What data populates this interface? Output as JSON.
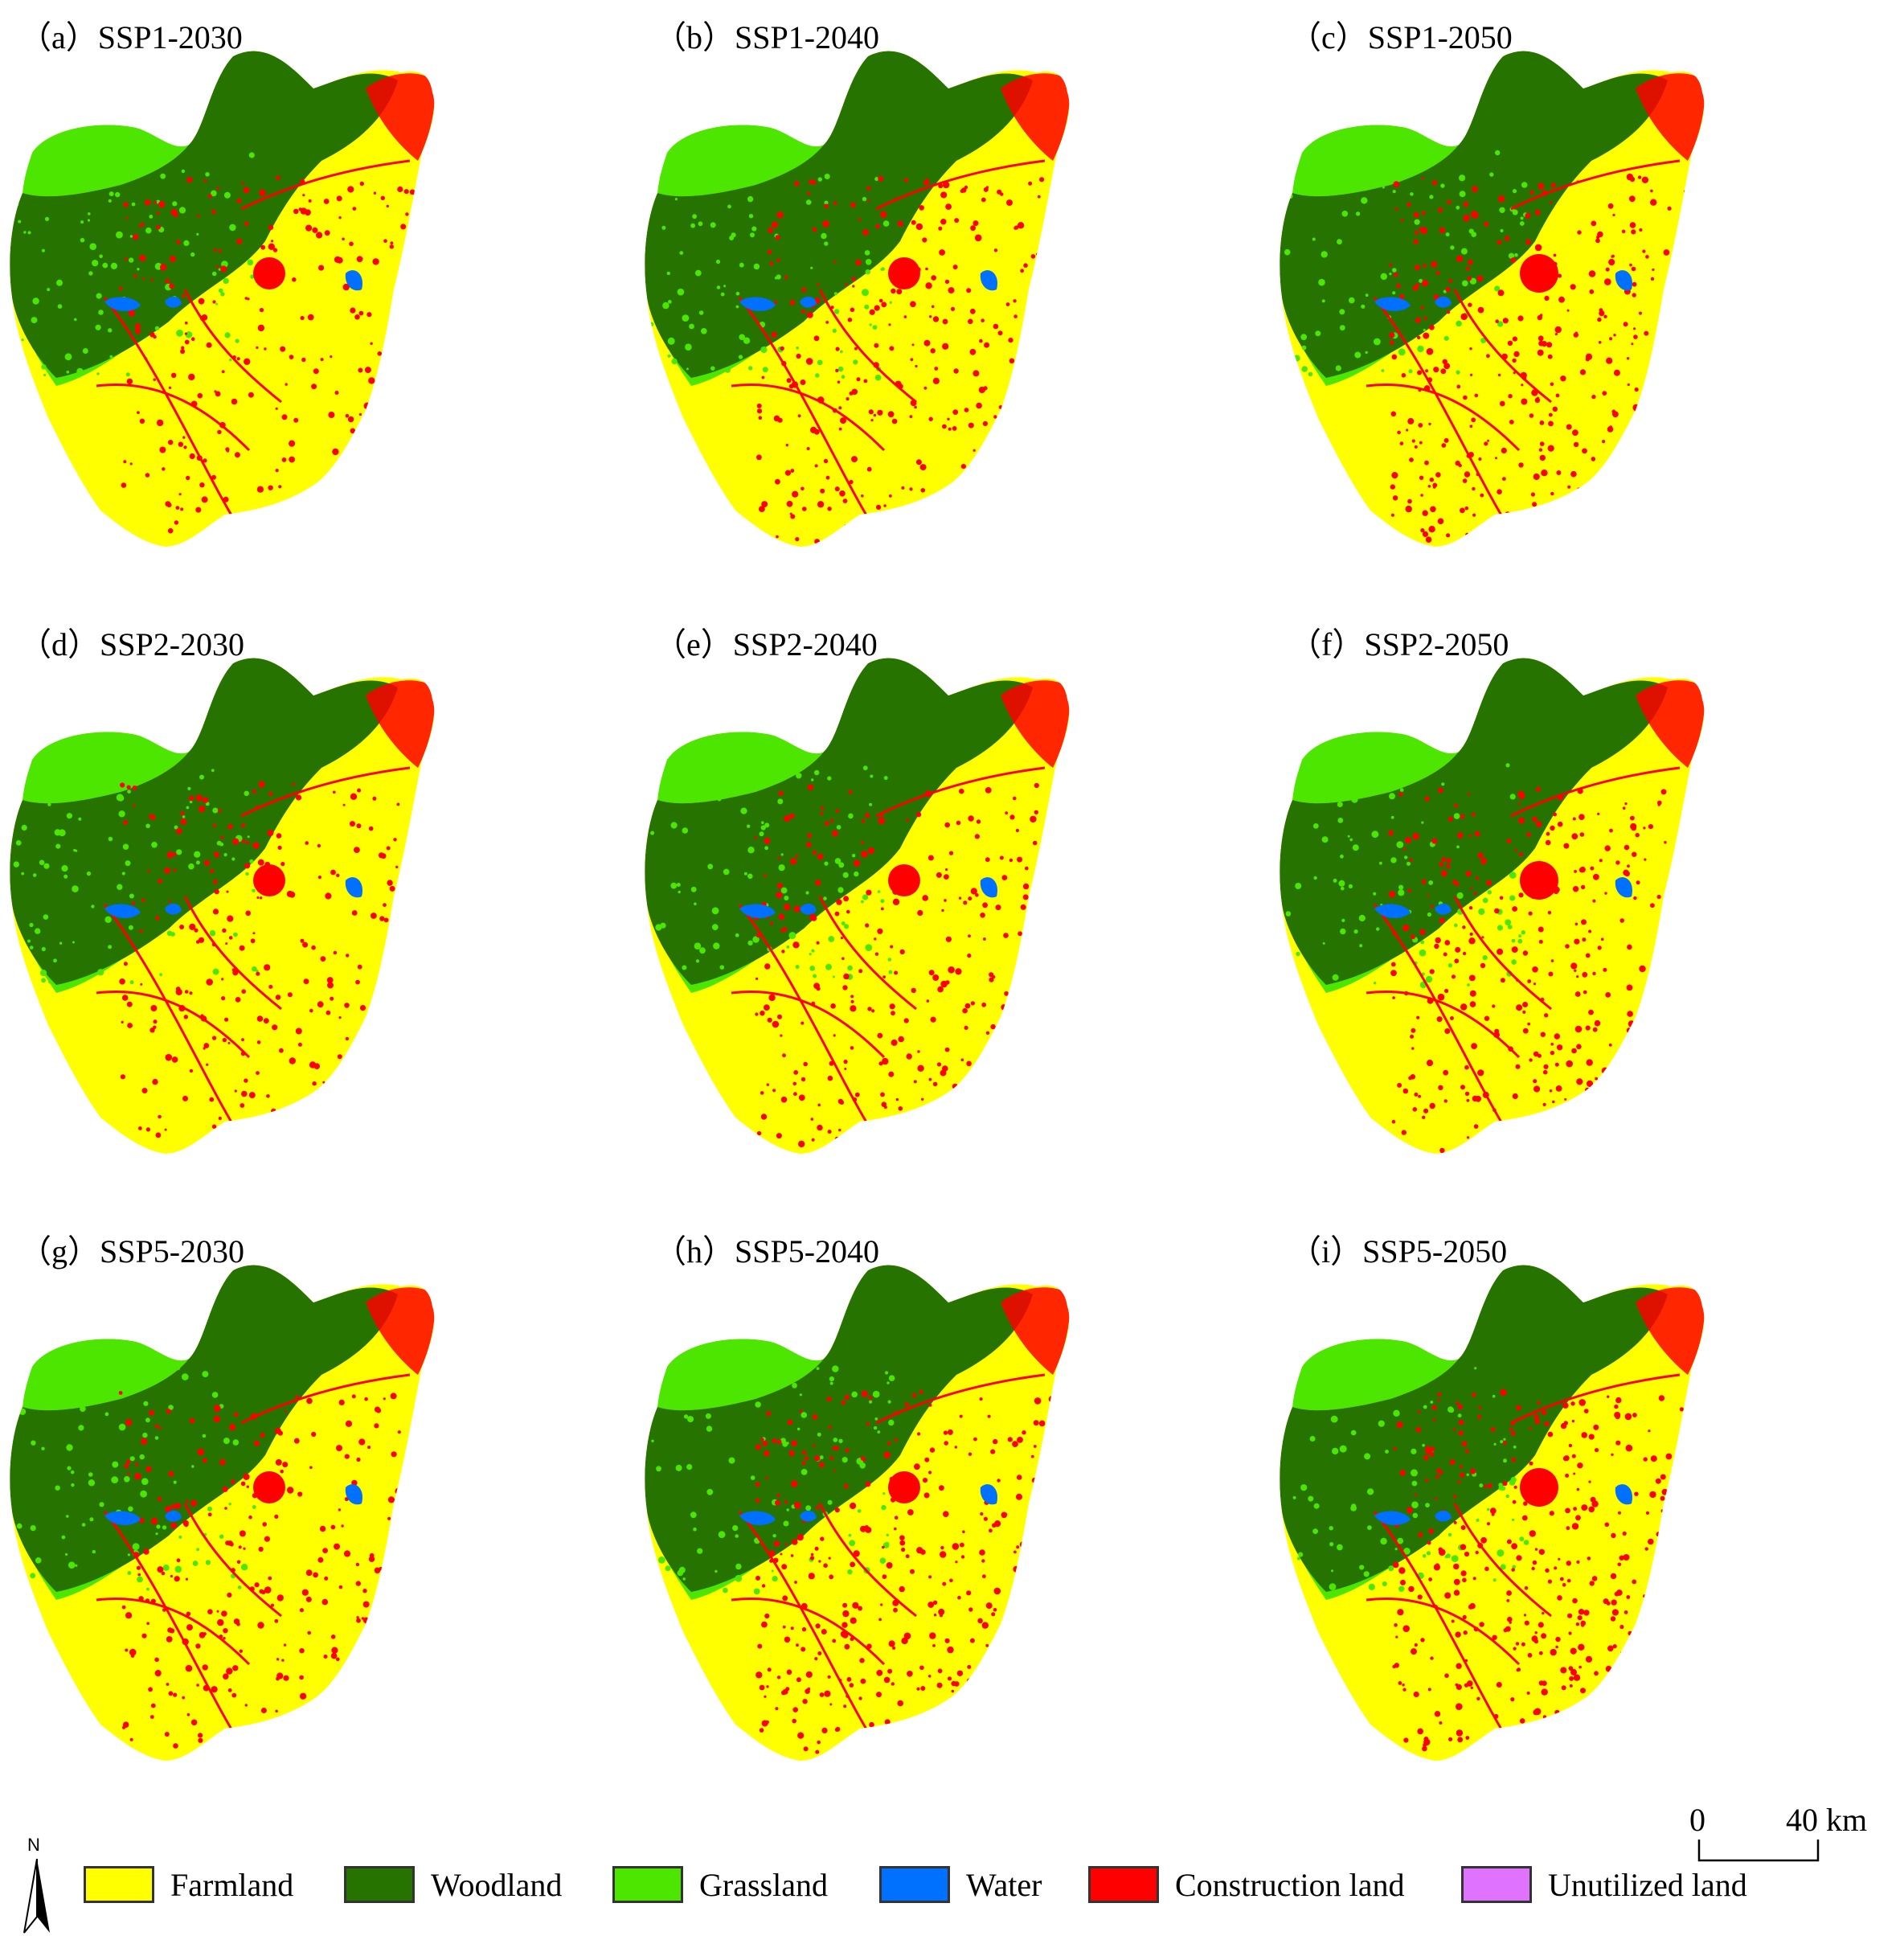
{
  "panels": [
    {
      "id": "a",
      "label": "（a）SSP1-2030",
      "scenario": "SSP1",
      "year": 2030
    },
    {
      "id": "b",
      "label": "（b）SSP1-2040",
      "scenario": "SSP1",
      "year": 2040
    },
    {
      "id": "c",
      "label": "（c）SSP1-2050",
      "scenario": "SSP1",
      "year": 2050
    },
    {
      "id": "d",
      "label": "（d）SSP2-2030",
      "scenario": "SSP2",
      "year": 2030
    },
    {
      "id": "e",
      "label": "（e）SSP2-2040",
      "scenario": "SSP2",
      "year": 2040
    },
    {
      "id": "f",
      "label": "（f）SSP2-2050",
      "scenario": "SSP2",
      "year": 2050
    },
    {
      "id": "g",
      "label": "（g）SSP5-2030",
      "scenario": "SSP5",
      "year": 2030
    },
    {
      "id": "h",
      "label": "（h）SSP5-2040",
      "scenario": "SSP5",
      "year": 2040
    },
    {
      "id": "i",
      "label": "（i）SSP5-2050",
      "scenario": "SSP5",
      "year": 2050
    }
  ],
  "legend": [
    {
      "label": "Farmland",
      "color": "#ffff00"
    },
    {
      "label": "Woodland",
      "color": "#267300"
    },
    {
      "label": "Grassland",
      "color": "#4ce600"
    },
    {
      "label": "Water",
      "color": "#0070ff"
    },
    {
      "label": "Construction land",
      "color": "#ff0000"
    },
    {
      "label": "Unutilized land",
      "color": "#df73ff"
    }
  ],
  "north_arrow": {
    "letter": "N"
  },
  "scale_bar": {
    "start": "0",
    "end": "40 km"
  }
}
